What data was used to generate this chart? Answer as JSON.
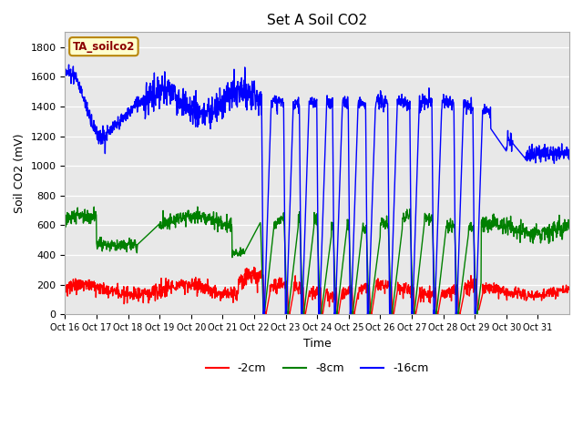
{
  "title": "Set A Soil CO2",
  "ylabel": "Soil CO2 (mV)",
  "xlabel": "Time",
  "legend_label": "TA_soilco2",
  "legend_entries": [
    "-2cm",
    "-8cm",
    "-16cm"
  ],
  "legend_colors": [
    "red",
    "green",
    "blue"
  ],
  "ylim": [
    0,
    1900
  ],
  "yticks": [
    0,
    200,
    400,
    600,
    800,
    1000,
    1200,
    1400,
    1600,
    1800
  ],
  "xtick_labels": [
    "Oct 16",
    "Oct 17",
    "Oct 18",
    "Oct 19",
    "Oct 20",
    "Oct 21",
    "Oct 22",
    "Oct 23",
    "Oct 24",
    "Oct 25",
    "Oct 26",
    "Oct 27",
    "Oct 28",
    "Oct 29",
    "Oct 30",
    "Oct 31"
  ],
  "bg_color": "#e8e8e8",
  "fig_bg": "#ffffff",
  "title_fontsize": 11,
  "axis_fontsize": 9,
  "tick_fontsize": 8,
  "line_width": 1.0
}
